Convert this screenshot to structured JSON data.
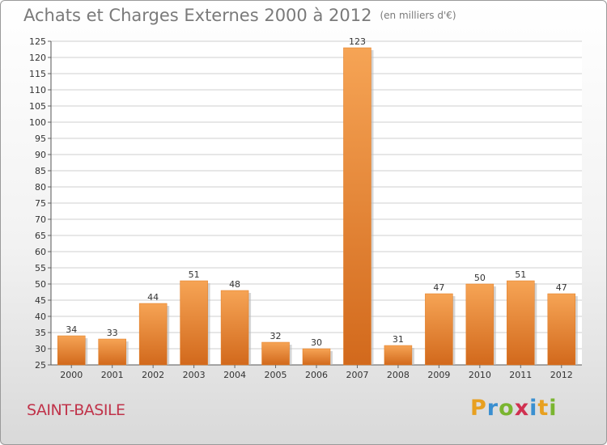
{
  "chart_data": {
    "type": "bar",
    "title": "Achats et Charges Externes 2000 à 2012",
    "subtitle": "(en milliers d'€)",
    "categories": [
      "2000",
      "2001",
      "2002",
      "2003",
      "2004",
      "2005",
      "2006",
      "2007",
      "2008",
      "2009",
      "2010",
      "2011",
      "2012"
    ],
    "values": [
      34,
      33,
      44,
      51,
      48,
      32,
      30,
      123,
      31,
      47,
      50,
      51,
      47
    ],
    "ylim": [
      25,
      125
    ],
    "yticks": [
      "25",
      "30",
      "35",
      "40",
      "45",
      "50",
      "55",
      "60",
      "65",
      "70",
      "75",
      "80",
      "85",
      "90",
      "95",
      "100",
      "105",
      "110",
      "115",
      "120",
      "125"
    ],
    "grid": true,
    "bar_color": "#f0862a"
  },
  "footer": {
    "place": "SAINT-BASILE",
    "logo": {
      "letters": [
        "P",
        "r",
        "o",
        "x",
        "i",
        "t",
        "i"
      ],
      "colors": [
        "#e8a020",
        "#3a8fd0",
        "#7ab530",
        "#d03050",
        "#3a8fd0",
        "#e8a020",
        "#7ab530"
      ]
    }
  }
}
